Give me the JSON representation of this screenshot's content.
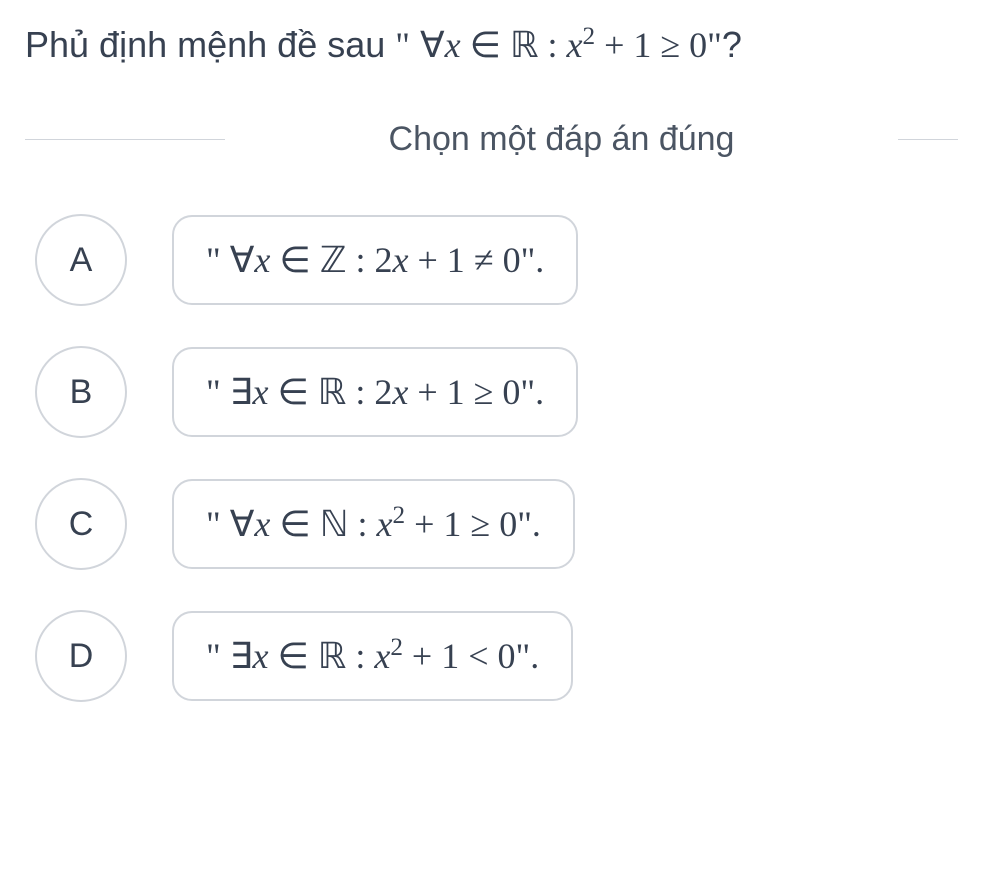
{
  "question": {
    "prefix": "Phủ định mệnh đề sau ",
    "openQuote": "\"",
    "forall": "∀",
    "var": "x",
    "in": "∈",
    "set": "ℝ",
    "colon": " : ",
    "expr_base": "x",
    "expr_sup": "2",
    "plus": " + 1",
    "relation": " ≥ ",
    "rhs": "0",
    "closeQuote": "\"",
    "qmark": "?"
  },
  "instruction": "Chọn một đáp án đúng",
  "options": {
    "A": {
      "letter": "A",
      "openQuote": "\"",
      "quantifier": "∀",
      "var": "x",
      "in": "∈",
      "set": "ℤ",
      "colon": " : ",
      "expr": "2x + 1",
      "relation": " ≠ ",
      "rhs": "0",
      "closeQuote": "\"",
      "period": "."
    },
    "B": {
      "letter": "B",
      "openQuote": "\"",
      "quantifier": "∃",
      "var": "x",
      "in": "∈",
      "set": "ℝ",
      "colon": " : ",
      "expr": "2x + 1",
      "relation": " ≥ ",
      "rhs": "0",
      "closeQuote": "\"",
      "period": "."
    },
    "C": {
      "letter": "C",
      "openQuote": "\"",
      "quantifier": "∀",
      "var": "x",
      "in": "∈",
      "set": "ℕ",
      "colon": " : ",
      "expr_base": "x",
      "expr_sup": "2",
      "plus": " + 1",
      "relation": " ≥ ",
      "rhs": "0",
      "closeQuote": "\"",
      "period": "."
    },
    "D": {
      "letter": "D",
      "openQuote": "\"",
      "quantifier": "∃",
      "var": "x",
      "in": "∈",
      "set": "ℝ",
      "colon": " : ",
      "expr_base": "x",
      "expr_sup": "2",
      "plus": " + 1",
      "relation": " < ",
      "rhs": "0",
      "closeQuote": "\"",
      "period": "."
    }
  },
  "styling": {
    "background_color": "#ffffff",
    "text_color": "#374151",
    "border_color": "#d1d5db",
    "question_fontsize": 36,
    "instruction_fontsize": 34,
    "option_fontsize": 36,
    "letter_circle_diameter": 92,
    "option_border_radius": 20,
    "letter_border_radius_percent": 50
  }
}
